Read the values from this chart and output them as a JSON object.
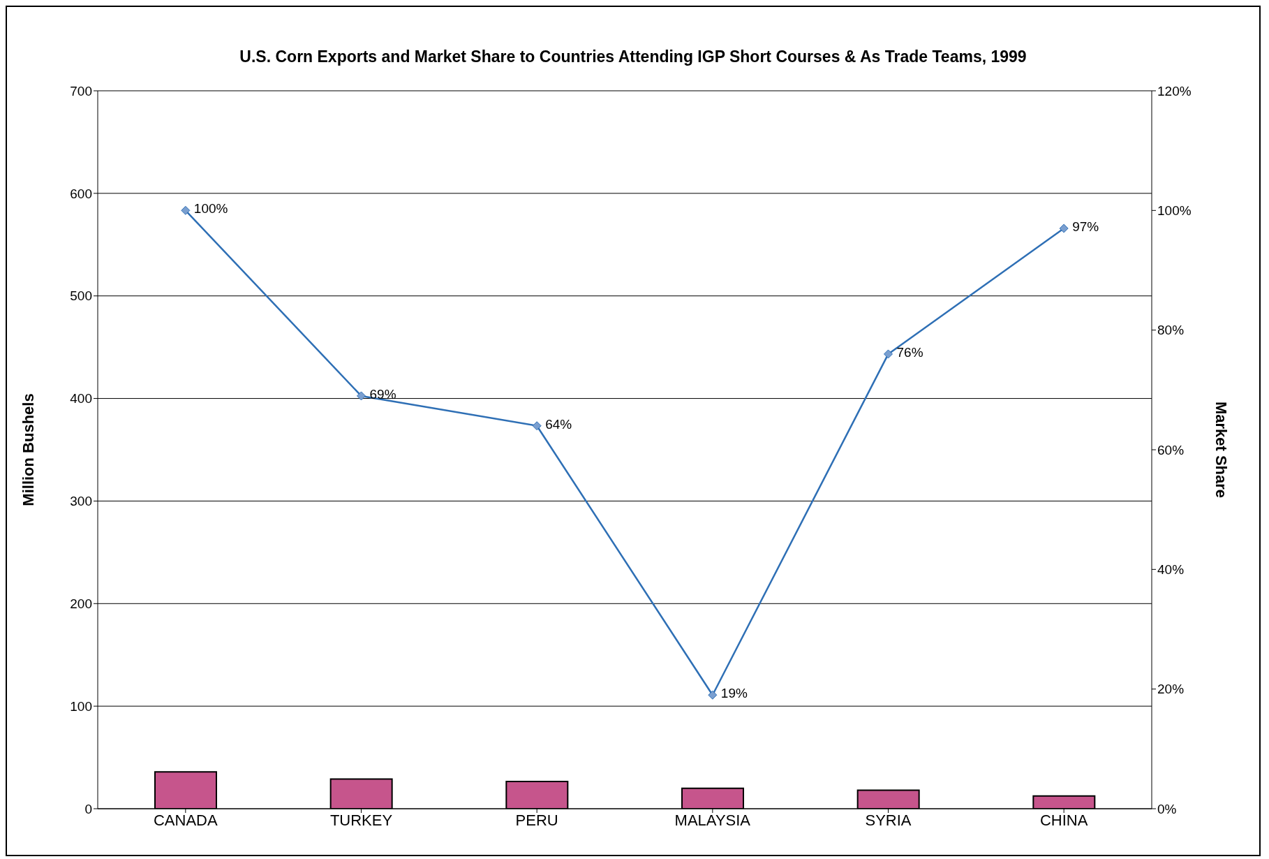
{
  "chart_data": {
    "type": "bar",
    "title": "U.S. Corn Exports and Market Share to Countries Attending IGP Short Courses & As Trade Teams, 1999",
    "ylabel": "Million Bushels",
    "y2label": "Market Share",
    "categories": [
      "CANADA",
      "TURKEY",
      "PERU",
      "MALAYSIA",
      "SYRIA",
      "CHINA"
    ],
    "series": [
      {
        "color": "#c6558c",
        "values": [
          36,
          29,
          26.5,
          20,
          18,
          12.5
        ]
      },
      {
        "type": "line",
        "axis": "y2",
        "color": "#2e6fb5",
        "values": [
          100,
          69,
          64,
          19,
          76,
          97
        ],
        "value_labels": [
          "100%",
          "69%",
          "64%",
          "19%",
          "76%",
          "97%"
        ]
      }
    ],
    "ylim": [
      0,
      700
    ],
    "yticks": [
      0,
      100,
      200,
      300,
      400,
      500,
      600,
      700
    ],
    "y2lim": [
      0,
      120
    ],
    "y2ticks": [
      {
        "value": 0,
        "label": "0%"
      },
      {
        "value": 20,
        "label": "20%"
      },
      {
        "value": 40,
        "label": "40%"
      },
      {
        "value": 60,
        "label": "60%"
      },
      {
        "value": 80,
        "label": "80%"
      },
      {
        "value": 100,
        "label": "100%"
      },
      {
        "value": 120,
        "label": "120%"
      }
    ],
    "grid": "y",
    "marker": "diamond",
    "legend": false
  }
}
